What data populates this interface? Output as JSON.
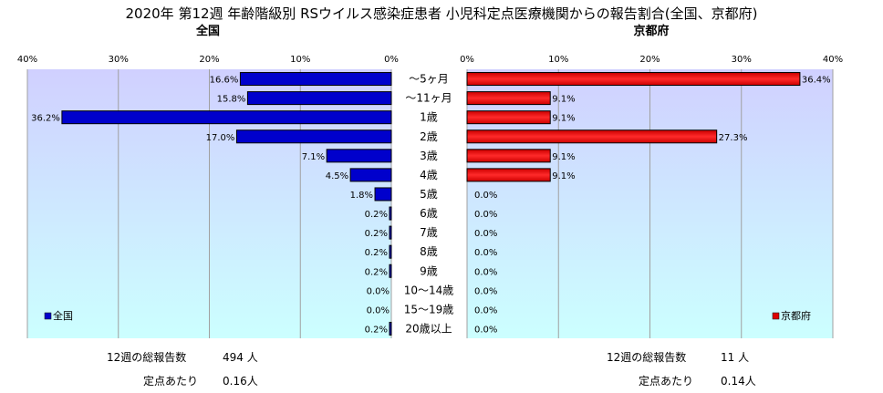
{
  "chart_data": {
    "type": "bar",
    "title": "2020年 第12週 年齢階級別 RSウイルス感染症患者 小児科定点医療機関からの報告割合(全国、京都府)",
    "categories": [
      "～5ヶ月",
      "～11ヶ月",
      "1歳",
      "2歳",
      "3歳",
      "4歳",
      "5歳",
      "6歳",
      "7歳",
      "8歳",
      "9歳",
      "10～14歳",
      "15～19歳",
      "20歳以上"
    ],
    "xlim": [
      0,
      40
    ],
    "ticks": [
      "40%",
      "30%",
      "20%",
      "10%",
      "0%"
    ],
    "ticks_right": [
      "0%",
      "10%",
      "20%",
      "30%",
      "40%"
    ],
    "grid": true,
    "series": [
      {
        "name": "全国",
        "subtitle": "全国",
        "color": "#0000cc",
        "values": [
          16.6,
          15.8,
          36.2,
          17.0,
          7.1,
          4.5,
          1.8,
          0.2,
          0.2,
          0.2,
          0.2,
          0.0,
          0.0,
          0.2
        ],
        "labels": [
          "16.6%",
          "15.8%",
          "36.2%",
          "17.0%",
          "7.1%",
          "4.5%",
          "1.8%",
          "0.2%",
          "0.2%",
          "0.2%",
          "0.2%",
          "0.0%",
          "0.0%",
          "0.2%"
        ],
        "legend": "全国",
        "legend_position": "bottom-left",
        "total_label": "12週の総報告数",
        "total_value": "494 人",
        "per_label": "定点あたり",
        "per_value": "0.16人"
      },
      {
        "name": "京都府",
        "subtitle": "京都府",
        "color": "#dd0000",
        "values": [
          36.4,
          9.1,
          9.1,
          27.3,
          9.1,
          9.1,
          0.0,
          0.0,
          0.0,
          0.0,
          0.0,
          0.0,
          0.0,
          0.0
        ],
        "labels": [
          "36.4%",
          "9.1%",
          "9.1%",
          "27.3%",
          "9.1%",
          "9.1%",
          "0.0%",
          "0.0%",
          "0.0%",
          "0.0%",
          "0.0%",
          "0.0%",
          "0.0%",
          "0.0%"
        ],
        "legend": "京都府",
        "legend_position": "bottom-right",
        "total_label": "12週の総報告数",
        "total_value": "11 人",
        "per_label": "定点あたり",
        "per_value": "0.14人"
      }
    ]
  }
}
